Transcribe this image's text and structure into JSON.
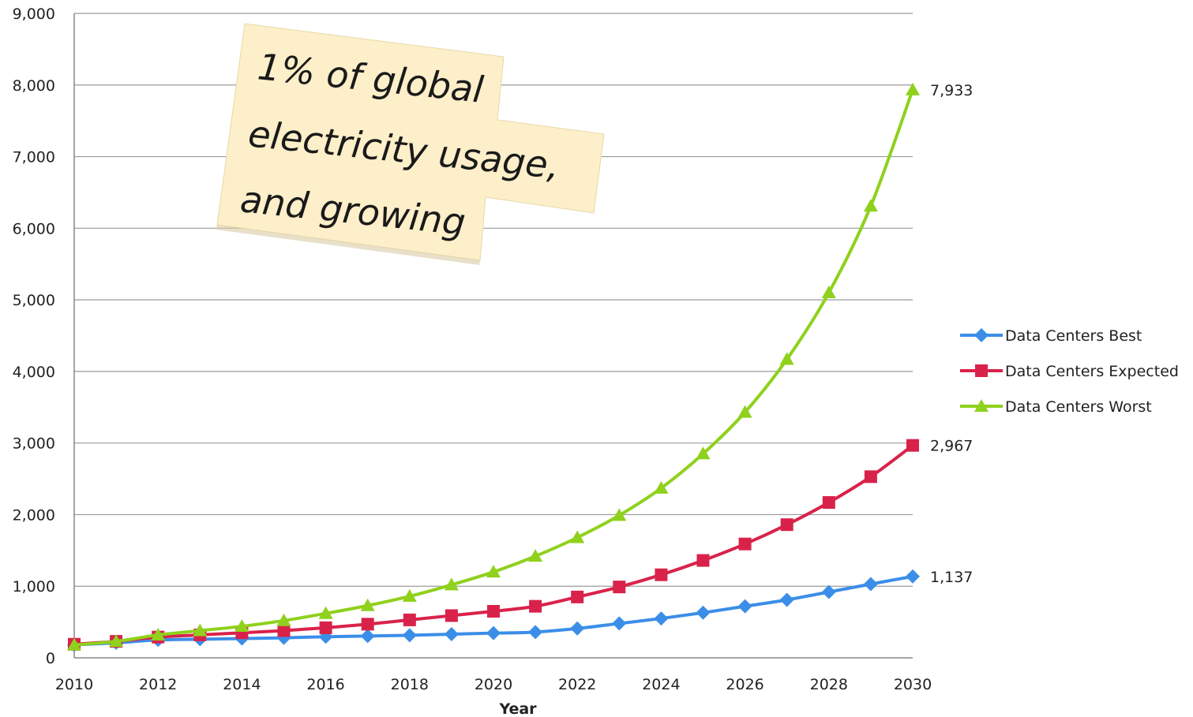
{
  "chart_data": {
    "type": "line",
    "title": "",
    "xlabel": "Year",
    "ylabel": "",
    "ylim": [
      0,
      9000
    ],
    "xlim": [
      2010,
      2030
    ],
    "yticks": [
      "0",
      "1,000",
      "2,000",
      "3,000",
      "4,000",
      "5,000",
      "6,000",
      "7,000",
      "8,000",
      "9,000"
    ],
    "xticks": [
      "2010",
      "2012",
      "2014",
      "2016",
      "2018",
      "2020",
      "2022",
      "2024",
      "2026",
      "2028",
      "2030"
    ],
    "grid": "horizontal",
    "legend_position": "right",
    "x": [
      2010,
      2011,
      2012,
      2013,
      2014,
      2015,
      2016,
      2017,
      2018,
      2019,
      2020,
      2021,
      2022,
      2023,
      2024,
      2025,
      2026,
      2027,
      2028,
      2029,
      2030
    ],
    "series": [
      {
        "name": "Data Centers Best",
        "color": "#3b8ee8",
        "marker": "diamond",
        "values": [
          180,
          210,
          250,
          260,
          270,
          280,
          295,
          305,
          315,
          330,
          345,
          360,
          410,
          480,
          550,
          630,
          720,
          810,
          920,
          1030,
          1137
        ],
        "end_label": "1,137"
      },
      {
        "name": "Data Centers Expected",
        "color": "#d9224a",
        "marker": "square",
        "values": [
          190,
          230,
          290,
          320,
          350,
          380,
          420,
          470,
          530,
          590,
          650,
          720,
          850,
          990,
          1160,
          1360,
          1590,
          1860,
          2170,
          2530,
          2967
        ],
        "end_label": "2,967"
      },
      {
        "name": "Data Centers Worst",
        "color": "#8fd11c",
        "marker": "triangle",
        "values": [
          180,
          230,
          320,
          380,
          440,
          520,
          620,
          730,
          860,
          1020,
          1200,
          1420,
          1680,
          1990,
          2370,
          2850,
          3430,
          4170,
          5100,
          6310,
          7933
        ],
        "end_label": "7,933"
      }
    ],
    "annotation": {
      "lines": [
        "1% of global",
        "electricity usage,",
        "and growing"
      ]
    }
  }
}
